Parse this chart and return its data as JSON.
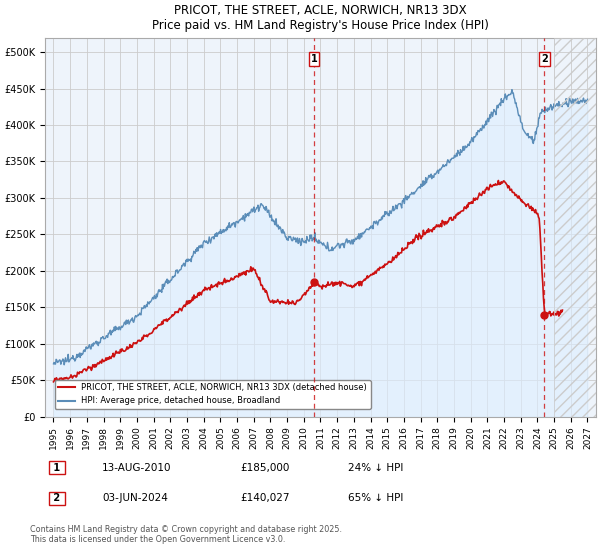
{
  "title": "PRICOT, THE STREET, ACLE, NORWICH, NR13 3DX",
  "subtitle": "Price paid vs. HM Land Registry's House Price Index (HPI)",
  "ylabel_ticks": [
    "£0",
    "£50K",
    "£100K",
    "£150K",
    "£200K",
    "£250K",
    "£300K",
    "£350K",
    "£400K",
    "£450K",
    "£500K"
  ],
  "ytick_values": [
    0,
    50000,
    100000,
    150000,
    200000,
    250000,
    300000,
    350000,
    400000,
    450000,
    500000
  ],
  "ylim": [
    0,
    520000
  ],
  "xlim_start": 1994.5,
  "xlim_end": 2027.5,
  "x_tick_years": [
    1995,
    1996,
    1997,
    1998,
    1999,
    2000,
    2001,
    2002,
    2003,
    2004,
    2005,
    2006,
    2007,
    2008,
    2009,
    2010,
    2011,
    2012,
    2013,
    2014,
    2015,
    2016,
    2017,
    2018,
    2019,
    2020,
    2021,
    2022,
    2023,
    2024,
    2025,
    2026,
    2027
  ],
  "hpi_color": "#5b8db8",
  "hpi_fill": "#ddeeff",
  "price_color": "#cc1111",
  "marker1_year": 2010.62,
  "marker2_year": 2024.42,
  "marker1_label": "1",
  "marker2_label": "2",
  "marker1_price": 185000,
  "marker2_price": 140027,
  "legend_line1": "PRICOT, THE STREET, ACLE, NORWICH, NR13 3DX (detached house)",
  "legend_line2": "HPI: Average price, detached house, Broadland",
  "annotation1_date": "13-AUG-2010",
  "annotation1_price": "£185,000",
  "annotation1_hpi": "24% ↓ HPI",
  "annotation2_date": "03-JUN-2024",
  "annotation2_price": "£140,027",
  "annotation2_hpi": "65% ↓ HPI",
  "footnote": "Contains HM Land Registry data © Crown copyright and database right 2025.\nThis data is licensed under the Open Government Licence v3.0.",
  "bg_color": "#eef4fb",
  "grid_color": "#cccccc",
  "hatch_start": 2025.0,
  "hatch_color": "#bbbbbb"
}
